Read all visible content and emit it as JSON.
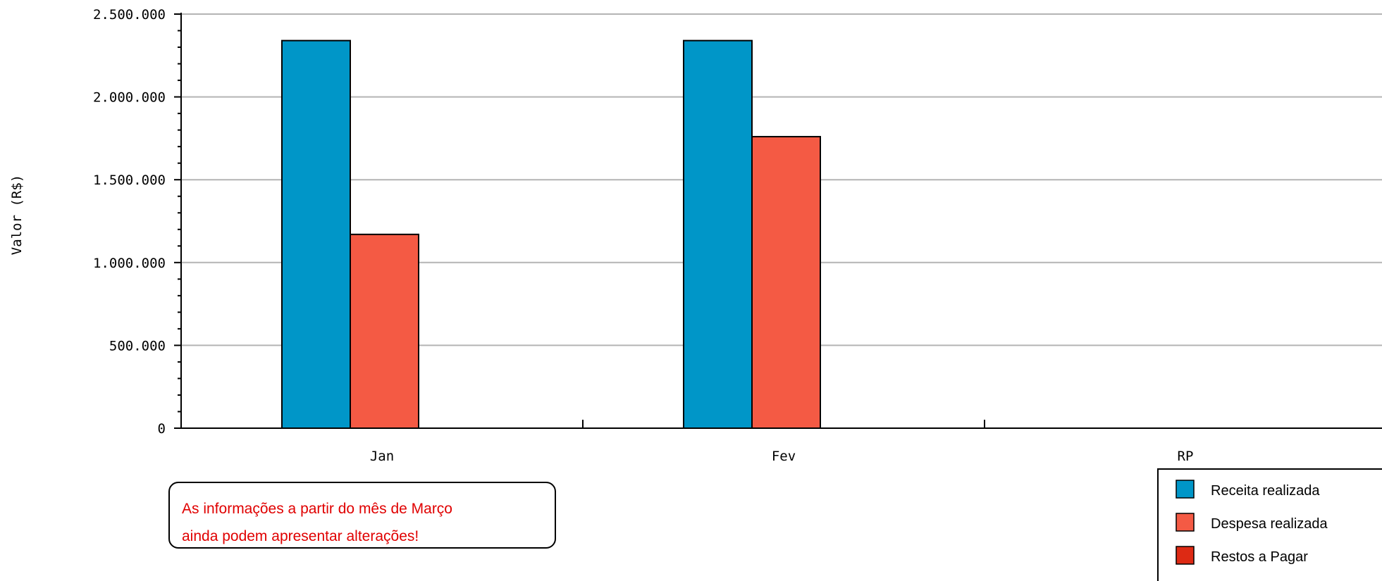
{
  "chart_data": {
    "type": "bar",
    "ylabel": "Valor (R$)",
    "ylim": [
      0,
      2500000
    ],
    "yticks": [
      0,
      500000,
      1000000,
      1500000,
      2000000,
      2500000
    ],
    "ytick_labels": [
      "0",
      "500.000",
      "1.000.000",
      "1.500.000",
      "2.000.000",
      "2.500.000"
    ],
    "categories": [
      "Jan",
      "Fev",
      "RP"
    ],
    "grid": true,
    "legend_position": "bottom-right",
    "series": [
      {
        "name": "Receita realizada",
        "color": "#0096c8",
        "values": [
          2340000,
          2340000,
          0
        ]
      },
      {
        "name": "Despesa realizada",
        "color": "#f45a44",
        "values": [
          1170000,
          1760000,
          0
        ]
      },
      {
        "name": "Restos a Pagar",
        "color": "#dd2a14",
        "values": [
          0,
          0,
          0
        ]
      }
    ]
  },
  "note": {
    "line1": "As informações a partir do mês de Março",
    "line2": "ainda podem apresentar alterações!"
  }
}
